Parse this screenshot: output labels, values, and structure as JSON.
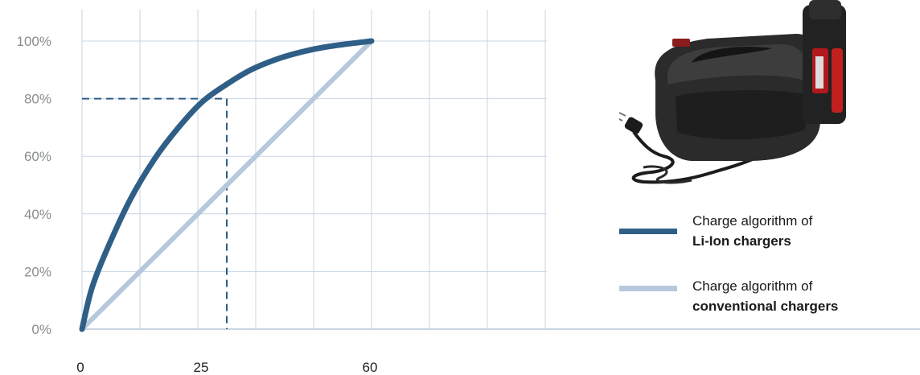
{
  "chart_data": {
    "type": "line",
    "x_ticks": [
      "0",
      "25",
      "60"
    ],
    "y_ticks": [
      "0%",
      "20%",
      "40%",
      "60%",
      "80%",
      "100%"
    ],
    "xlim": [
      0,
      60
    ],
    "ylim": [
      0,
      100
    ],
    "grid": true,
    "legend_position": "right",
    "series": [
      {
        "name_line1": "Charge algorithm of",
        "name_line2": "Li-Ion chargers",
        "color": "#2f5f86",
        "x": [
          0,
          2,
          5,
          10,
          15,
          20,
          25,
          30,
          35,
          40,
          45,
          50,
          55,
          60
        ],
        "y": [
          0,
          14,
          27,
          45,
          59,
          70,
          79,
          85,
          90,
          93.5,
          96,
          97.8,
          99,
          100
        ]
      },
      {
        "name_line1": "Charge algorithm of",
        "name_line2": "conventional chargers",
        "color": "#b6c8dc",
        "x": [
          0,
          60
        ],
        "y": [
          0,
          100
        ]
      }
    ],
    "annotations": [
      {
        "type": "dashed-guide",
        "x": 25,
        "y": 80,
        "color": "#2f5f86"
      }
    ]
  },
  "colors": {
    "grid": "#c8d4e2",
    "axis": "#b6c8dc"
  },
  "image": {
    "name": "li-ion-charger-photo"
  }
}
